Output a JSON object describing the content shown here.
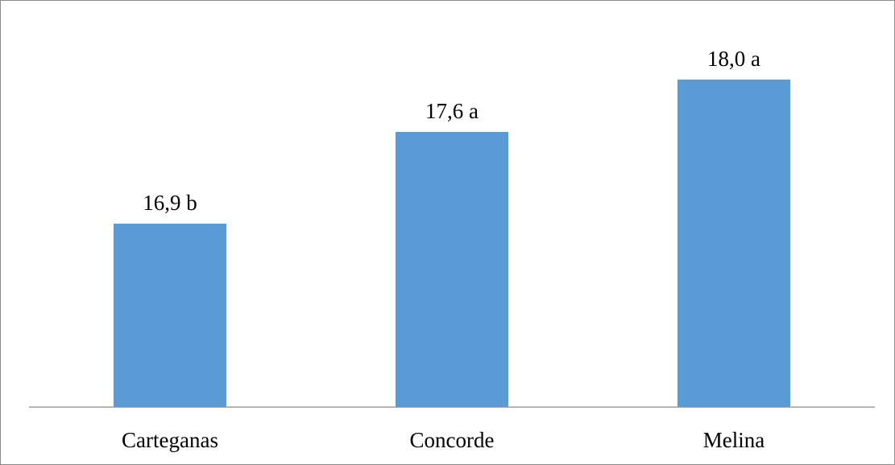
{
  "chart_data": {
    "type": "bar",
    "categories": [
      "Carteganas",
      "Concorde",
      "Melina"
    ],
    "values": [
      16.9,
      17.6,
      18.0
    ],
    "data_labels": [
      "16,9 b",
      "17,6 a",
      "18,0 a"
    ],
    "title": "",
    "xlabel": "",
    "ylabel": "",
    "ylim": [
      15.5,
      18.3
    ],
    "grid": false,
    "legend": "none",
    "bar_color": "#5b9bd5",
    "axis_color": "#8c8c8c"
  }
}
